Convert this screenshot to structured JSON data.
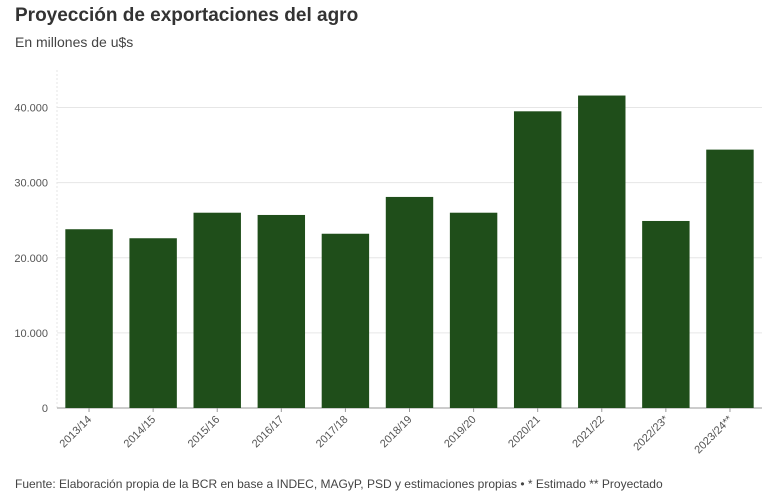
{
  "header": {
    "title": "Proyección de exportaciones del agro",
    "subtitle": "En millones de u$s"
  },
  "footer": {
    "source": "Fuente: Elaboración propia de la BCR en base a INDEC, MAGyP, PSD y estimaciones propias • * Estimado ** Proyectado"
  },
  "colors": {
    "bar": "#1f4e1a",
    "grid": "#e6e6e6",
    "axis": "#999999"
  },
  "chart_data": {
    "type": "bar",
    "title": "Proyección de exportaciones del agro",
    "subtitle": "En millones de u$s",
    "xlabel": "",
    "ylabel": "En millones de u$s",
    "categories": [
      "2013/14",
      "2014/15",
      "2015/16",
      "2016/17",
      "2017/18",
      "2018/19",
      "2019/20",
      "2020/21",
      "2021/22",
      "2022/23*",
      "2023/24**"
    ],
    "values": [
      23800,
      22600,
      26000,
      25700,
      23200,
      28100,
      26000,
      39500,
      41600,
      24900,
      34400
    ],
    "ylim": [
      0,
      45000
    ],
    "yticks": [
      0,
      10000,
      20000,
      30000,
      40000
    ],
    "ytick_labels": [
      "0",
      "10.000",
      "20.000",
      "30.000",
      "40.000"
    ],
    "grid": true,
    "legend": "none"
  }
}
